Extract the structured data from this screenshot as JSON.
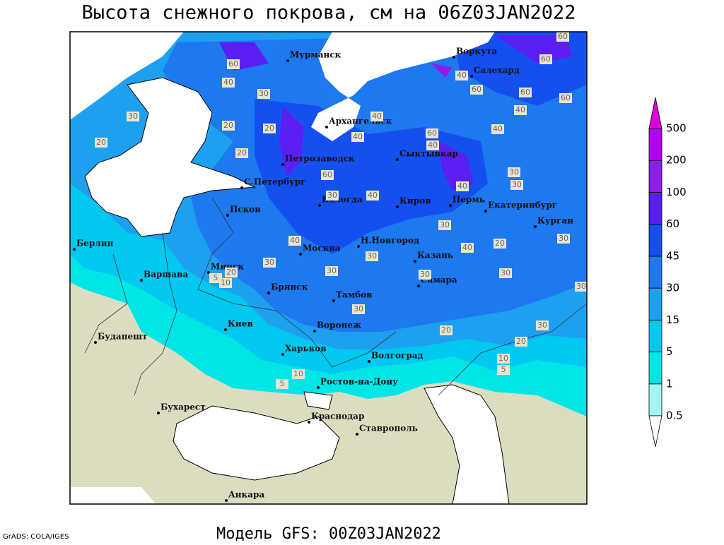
{
  "title": "Высота снежного покрова, см на 06Z03JAN2022",
  "subtitle": "Модель GFS: 00Z03JAN2022",
  "credit": "GrADS: COLA/IGES",
  "cities": [
    "Мурманск",
    "Архангельск",
    "Воркута",
    "Салехард",
    "Петрозаводск",
    "Сыктывкар",
    "С.Петербург",
    "Вологда",
    "Киров",
    "Пермь",
    "Екатеринбург",
    "Курган",
    "Псков",
    "Н.Новгород",
    "Москва",
    "Казань",
    "Минск",
    "Берлин",
    "Варшава",
    "Брянск",
    "Тамбов",
    "Самара",
    "Киев",
    "Воронеж",
    "Будапешт",
    "Харьков",
    "Волгоград",
    "Ростов-на-Дону",
    "Бухарест",
    "Краснодар",
    "Ставрополь",
    "Анкара"
  ],
  "contour_labels": [
    60,
    40,
    30,
    30,
    20,
    20,
    20,
    20,
    40,
    40,
    60,
    40,
    60,
    30,
    40,
    40,
    30,
    30,
    60,
    40,
    60,
    60,
    40,
    60,
    40,
    60,
    30,
    40,
    40,
    30,
    30,
    30,
    30,
    20,
    30,
    30,
    30,
    20,
    5,
    10,
    30,
    20,
    30,
    20,
    10,
    5,
    10,
    5
  ],
  "colorbar": {
    "levels": [
      0.5,
      1,
      5,
      15,
      30,
      45,
      60,
      100,
      200,
      500
    ],
    "colors": [
      "#ffffff",
      "#a0f5f5",
      "#00e6e6",
      "#00c8f0",
      "#1ea0f0",
      "#1e78f0",
      "#1450f0",
      "#5a1ef0",
      "#8c1ee6",
      "#b400f0",
      "#dc00dc"
    ]
  }
}
